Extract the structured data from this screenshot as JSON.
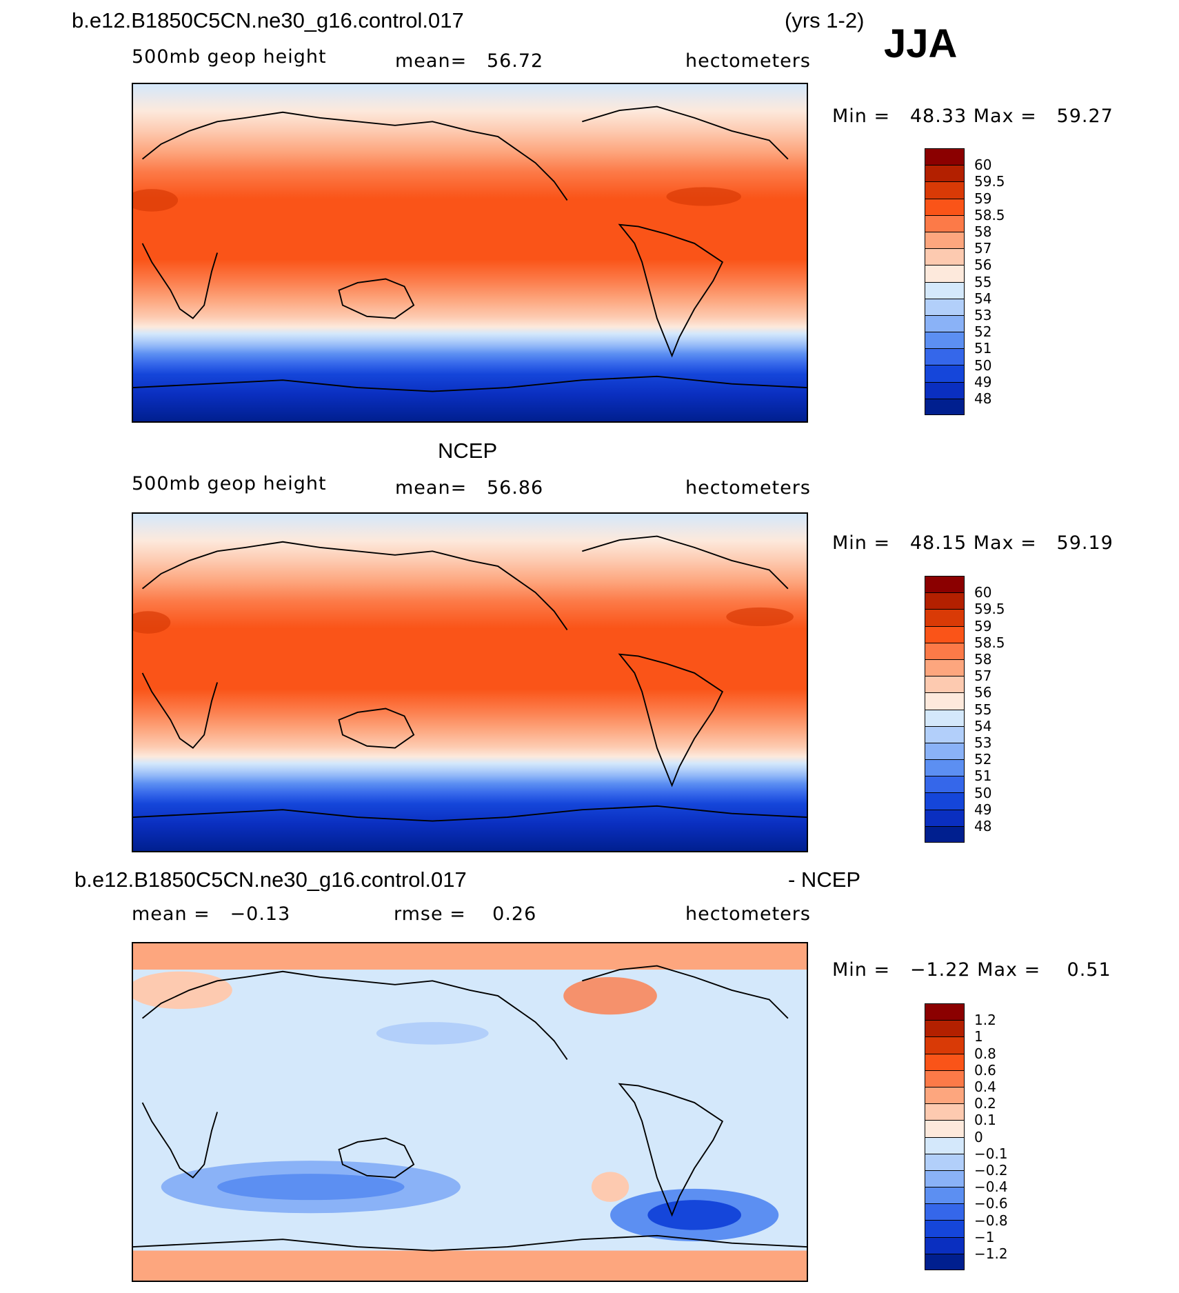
{
  "header": {
    "case_name": "b.e12.B1850C5CN.ne30_g16.control.017",
    "years": "(yrs 1-2)",
    "season": "JJA"
  },
  "panels": [
    {
      "id": "model",
      "title": "",
      "left_label": "500mb geop height",
      "center_label": "mean=   56.72",
      "right_label": "hectometers",
      "minmax": "Min =   48.33 Max =   59.27",
      "colorbar": {
        "labels": [
          "60",
          "59.5",
          "59",
          "58.5",
          "58",
          "57",
          "56",
          "55",
          "54",
          "53",
          "52",
          "51",
          "50",
          "49",
          "48"
        ],
        "colors": [
          "#8b0000",
          "#b32000",
          "#d93a06",
          "#fa5418",
          "#fc7a48",
          "#fda67e",
          "#fdcab0",
          "#fde9dc",
          "#d4e8fb",
          "#b2cffa",
          "#8ab2f7",
          "#5c8ff2",
          "#3567ea",
          "#1546da",
          "#0a2fc0",
          "#001f8f"
        ]
      }
    },
    {
      "id": "obs",
      "title": "NCEP",
      "left_label": "500mb geop height",
      "center_label": "mean=   56.86",
      "right_label": "hectometers",
      "minmax": "Min =   48.15 Max =   59.19",
      "colorbar": {
        "labels": [
          "60",
          "59.5",
          "59",
          "58.5",
          "58",
          "57",
          "56",
          "55",
          "54",
          "53",
          "52",
          "51",
          "50",
          "49",
          "48"
        ],
        "colors": [
          "#8b0000",
          "#b32000",
          "#d93a06",
          "#fa5418",
          "#fc7a48",
          "#fda67e",
          "#fdcab0",
          "#fde9dc",
          "#d4e8fb",
          "#b2cffa",
          "#8ab2f7",
          "#5c8ff2",
          "#3567ea",
          "#1546da",
          "#0a2fc0",
          "#001f8f"
        ]
      }
    },
    {
      "id": "diff",
      "title_left": "b.e12.B1850C5CN.ne30_g16.control.017",
      "title_right": "- NCEP",
      "left_label": "mean =   −0.13",
      "center_label": "rmse =    0.26",
      "right_label": "hectometers",
      "minmax": "Min =   −1.22 Max =    0.51",
      "colorbar": {
        "labels": [
          "1.2",
          "1",
          "0.8",
          "0.6",
          "0.4",
          "0.2",
          "0.1",
          "0",
          "−0.1",
          "−0.2",
          "−0.4",
          "−0.6",
          "−0.8",
          "−1",
          "−1.2"
        ],
        "colors": [
          "#8b0000",
          "#b32000",
          "#d93a06",
          "#fa5418",
          "#fc7a48",
          "#fda67e",
          "#fdcab0",
          "#fde9dc",
          "#d4e8fb",
          "#b2cffa",
          "#8ab2f7",
          "#5c8ff2",
          "#3567ea",
          "#1546da",
          "#0a2fc0",
          "#001f8f"
        ]
      }
    }
  ]
}
